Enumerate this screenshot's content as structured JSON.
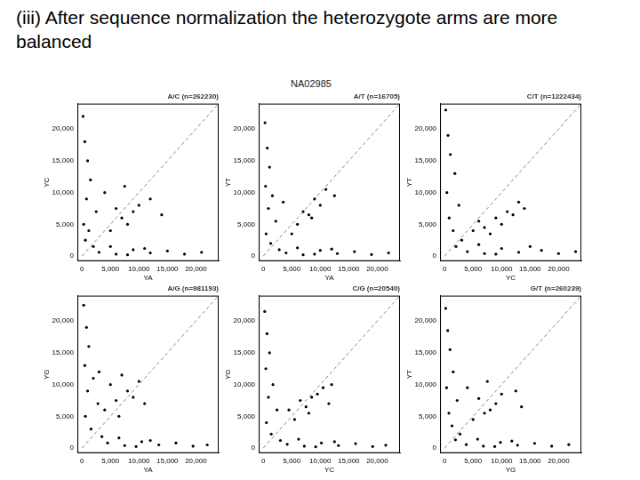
{
  "slide": {
    "title": "(iii) After sequence normalization the heterozygote arms are more balanced",
    "figure_title": "NA02985"
  },
  "chart_data": [
    {
      "type": "scatter",
      "title": "A/C (n=262230)",
      "x_label": "YA",
      "y_label": "YC",
      "xlim": [
        -800,
        24000
      ],
      "ylim": [
        -800,
        24000
      ],
      "xticks": [
        0,
        5000,
        10000,
        15000,
        20000
      ],
      "yticks": [
        0,
        5000,
        10000,
        15000,
        20000
      ],
      "grid": false,
      "series": [
        {
          "color": "#000000",
          "marker": "circle",
          "x": [
            200,
            500,
            1000,
            1500,
            800,
            2500,
            300,
            1200,
            600,
            2000,
            3000,
            6000,
            9000,
            12000,
            15000,
            18000,
            21000,
            5000,
            8000,
            11000,
            5000,
            7000,
            9000,
            6000,
            8000,
            10000,
            12000,
            4000,
            7500,
            14000
          ],
          "values": [
            22000,
            18000,
            15000,
            12000,
            9000,
            7000,
            5000,
            4000,
            2500,
            1500,
            600,
            300,
            1000,
            500,
            800,
            300,
            600,
            1500,
            200,
            1200,
            4000,
            6000,
            7000,
            7500,
            5000,
            8000,
            9000,
            10000,
            11000,
            6500
          ]
        },
        {
          "type": "line",
          "line_style": "dashed",
          "color": "#888888",
          "x": [
            0,
            24000
          ],
          "values": [
            0,
            24000
          ]
        }
      ]
    },
    {
      "type": "scatter",
      "title": "A/T (n=16705)",
      "x_label": "YA",
      "y_label": "YT",
      "xlim": [
        -800,
        24000
      ],
      "ylim": [
        -800,
        24000
      ],
      "xticks": [
        0,
        5000,
        10000,
        15000,
        20000
      ],
      "yticks": [
        0,
        5000,
        10000,
        15000,
        20000
      ],
      "grid": false,
      "series": [
        {
          "color": "#000000",
          "marker": "circle",
          "x": [
            300,
            700,
            1100,
            400,
            1600,
            900,
            2200,
            500,
            1300,
            2800,
            4000,
            7000,
            10000,
            13000,
            16000,
            19000,
            22000,
            6000,
            9000,
            12000,
            6000,
            8000,
            10000,
            7000,
            9000,
            11000,
            5000,
            8500,
            12500,
            3500
          ],
          "values": [
            21000,
            17000,
            14000,
            11000,
            9500,
            7500,
            5500,
            3500,
            2000,
            1000,
            500,
            200,
            900,
            400,
            700,
            250,
            500,
            1300,
            300,
            1100,
            5000,
            6500,
            8000,
            7000,
            9000,
            10500,
            3500,
            6000,
            9500,
            8500
          ]
        },
        {
          "type": "line",
          "line_style": "dashed",
          "color": "#888888",
          "x": [
            0,
            24000
          ],
          "values": [
            0,
            24000
          ]
        }
      ]
    },
    {
      "type": "scatter",
      "title": "C/T (n=1222434)",
      "x_label": "YC",
      "y_label": "YT",
      "xlim": [
        -800,
        24000
      ],
      "ylim": [
        -800,
        24000
      ],
      "xticks": [
        0,
        5000,
        10000,
        15000,
        20000
      ],
      "yticks": [
        0,
        5000,
        10000,
        15000,
        20000
      ],
      "grid": false,
      "series": [
        {
          "color": "#000000",
          "marker": "circle",
          "x": [
            200,
            600,
            1000,
            1800,
            400,
            2500,
            800,
            1500,
            3000,
            2000,
            4000,
            7000,
            10000,
            13000,
            17000,
            20000,
            23000,
            6000,
            9000,
            15000,
            7000,
            9000,
            11000,
            13000,
            8000,
            10000,
            12000,
            6000,
            14000,
            5000
          ],
          "values": [
            23000,
            19000,
            16000,
            13000,
            10000,
            8000,
            6000,
            4000,
            2500,
            1500,
            700,
            400,
            1200,
            600,
            900,
            400,
            700,
            1800,
            300,
            1500,
            4500,
            6000,
            7000,
            8500,
            3500,
            5000,
            6500,
            5500,
            7500,
            4000
          ]
        },
        {
          "type": "line",
          "line_style": "dashed",
          "color": "#888888",
          "x": [
            0,
            24000
          ],
          "values": [
            0,
            24000
          ]
        }
      ]
    },
    {
      "type": "scatter",
      "title": "A/G (n=981193)",
      "x_label": "YA",
      "y_label": "YG",
      "xlim": [
        -800,
        24000
      ],
      "ylim": [
        -800,
        24000
      ],
      "xticks": [
        0,
        5000,
        10000,
        15000,
        20000
      ],
      "yticks": [
        0,
        5000,
        10000,
        15000,
        20000
      ],
      "grid": false,
      "series": [
        {
          "color": "#000000",
          "marker": "circle",
          "x": [
            300,
            800,
            1200,
            500,
            2000,
            1000,
            2800,
            600,
            1600,
            3500,
            4500,
            7500,
            10500,
            13500,
            16500,
            19500,
            22000,
            6500,
            9500,
            12000,
            4000,
            6000,
            8000,
            5000,
            7000,
            9000,
            11000,
            3000,
            6500,
            10000
          ],
          "values": [
            22500,
            19000,
            16000,
            13000,
            11000,
            9000,
            7000,
            5000,
            3000,
            1800,
            800,
            400,
            1000,
            500,
            800,
            300,
            500,
            1600,
            250,
            1200,
            6000,
            7500,
            9000,
            10000,
            11500,
            8000,
            7000,
            12000,
            5000,
            10500
          ]
        },
        {
          "type": "line",
          "line_style": "dashed",
          "color": "#888888",
          "x": [
            0,
            24000
          ],
          "values": [
            0,
            24000
          ]
        }
      ]
    },
    {
      "type": "scatter",
      "title": "C/G (n=20540)",
      "x_label": "YC",
      "y_label": "YG",
      "xlim": [
        -800,
        24000
      ],
      "ylim": [
        -800,
        24000
      ],
      "xticks": [
        0,
        5000,
        10000,
        15000,
        20000
      ],
      "yticks": [
        0,
        5000,
        10000,
        15000,
        20000
      ],
      "grid": false,
      "series": [
        {
          "color": "#000000",
          "marker": "circle",
          "x": [
            250,
            650,
            1100,
            450,
            1700,
            900,
            2400,
            550,
            1400,
            3000,
            4200,
            7200,
            10200,
            13200,
            16200,
            19200,
            21500,
            6200,
            9200,
            12500,
            5500,
            7500,
            9500,
            6500,
            8500,
            10500,
            12000,
            4500,
            8000,
            11500
          ],
          "values": [
            21500,
            18000,
            15000,
            12500,
            10000,
            8000,
            6000,
            4000,
            2200,
            1200,
            600,
            300,
            800,
            400,
            700,
            250,
            450,
            1400,
            200,
            1000,
            4500,
            6500,
            8500,
            7500,
            8000,
            9500,
            10000,
            6000,
            5500,
            7000
          ]
        },
        {
          "type": "line",
          "line_style": "dashed",
          "color": "#888888",
          "x": [
            0,
            24000
          ],
          "values": [
            0,
            24000
          ]
        }
      ]
    },
    {
      "type": "scatter",
      "title": "G/T (n=260239)",
      "x_label": "YG",
      "y_label": "YT",
      "xlim": [
        -800,
        24000
      ],
      "ylim": [
        -800,
        24000
      ],
      "xticks": [
        0,
        5000,
        10000,
        15000,
        20000
      ],
      "yticks": [
        0,
        5000,
        10000,
        15000,
        20000
      ],
      "grid": false,
      "series": [
        {
          "color": "#000000",
          "marker": "circle",
          "x": [
            200,
            550,
            950,
            1500,
            350,
            2200,
            750,
            1300,
            2700,
            1900,
            3800,
            6800,
            9800,
            12800,
            15800,
            18800,
            21800,
            5800,
            8800,
            11800,
            5000,
            7000,
            9000,
            6000,
            8000,
            10000,
            12500,
            4000,
            7500,
            13500
          ],
          "values": [
            22000,
            18500,
            15500,
            12000,
            9500,
            7500,
            5500,
            3500,
            2200,
            1300,
            550,
            300,
            900,
            450,
            750,
            300,
            550,
            1400,
            250,
            1100,
            4500,
            5500,
            7000,
            7800,
            6000,
            8500,
            9000,
            9500,
            10500,
            6500
          ]
        },
        {
          "type": "line",
          "line_style": "dashed",
          "color": "#888888",
          "x": [
            0,
            24000
          ],
          "values": [
            0,
            24000
          ]
        }
      ]
    }
  ]
}
